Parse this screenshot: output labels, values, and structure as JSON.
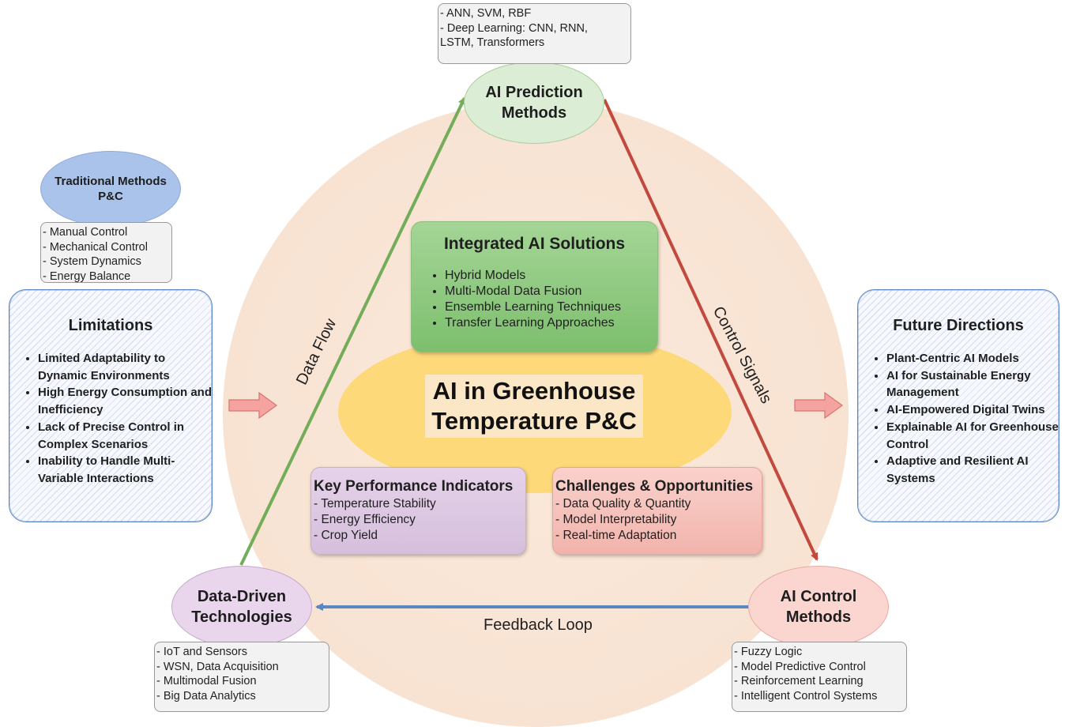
{
  "center": {
    "title_line1": "AI in Greenhouse",
    "title_line2": "Temperature P&C"
  },
  "integrated": {
    "title": "Integrated AI Solutions",
    "items": [
      "Hybrid Models",
      "Multi-Modal Data Fusion",
      "Ensemble Learning Techniques",
      "Transfer Learning Approaches"
    ]
  },
  "kpi": {
    "title": "Key Performance Indicators",
    "items": [
      "- Temperature Stability",
      "- Energy Efficiency",
      "- Crop Yield"
    ]
  },
  "challenges": {
    "title": "Challenges & Opportunities",
    "items": [
      "- Data Quality & Quantity",
      "- Model Interpretability",
      "- Real-time Adaptation"
    ]
  },
  "nodes": {
    "ai_prediction": {
      "line1": "AI Prediction",
      "line2": "Methods"
    },
    "data_driven": {
      "line1": "Data-Driven",
      "line2": "Technologies"
    },
    "ai_control": {
      "line1": "AI Control",
      "line2": "Methods"
    },
    "traditional": {
      "line1": "Traditional Methods",
      "line2": "P&C"
    }
  },
  "lists": {
    "ai_prediction": [
      "- ANN, SVM, RBF",
      "- Deep Learning:  CNN, RNN,",
      "LSTM, Transformers"
    ],
    "traditional": [
      "- Manual Control",
      "- Mechanical Control",
      "- System Dynamics",
      "- Energy Balance"
    ],
    "data_driven": [
      "- IoT and Sensors",
      "- WSN, Data Acquisition",
      "- Multimodal Fusion",
      "- Big Data Analytics"
    ],
    "ai_control": [
      "- Fuzzy Logic",
      "- Model Predictive Control",
      "- Reinforcement Learning",
      "- Intelligent Control Systems"
    ]
  },
  "limitations": {
    "title": "Limitations",
    "items": [
      "Limited Adaptability to Dynamic Environments",
      "High Energy Consumption and Inefficiency",
      "Lack of Precise Control in Complex Scenarios",
      "Inability to Handle Multi-Variable Interactions"
    ]
  },
  "future": {
    "title": "Future Directions",
    "items": [
      "Plant-Centric AI Models",
      "AI for Sustainable Energy Management",
      "AI-Empowered Digital Twins",
      "Explainable AI for Greenhouse Control",
      "Adaptive and Resilient AI Systems"
    ]
  },
  "arrow_labels": {
    "data_flow": "Data Flow",
    "control_signals": "Control Signals",
    "feedback_loop": "Feedback Loop"
  },
  "colors": {
    "data_flow_arrow": "#74ad5a",
    "control_arrow": "#c2493e",
    "feedback_arrow": "#5b86c0",
    "block_arrow_fill": "#f4a3a0",
    "block_arrow_stroke": "#d9736e"
  }
}
